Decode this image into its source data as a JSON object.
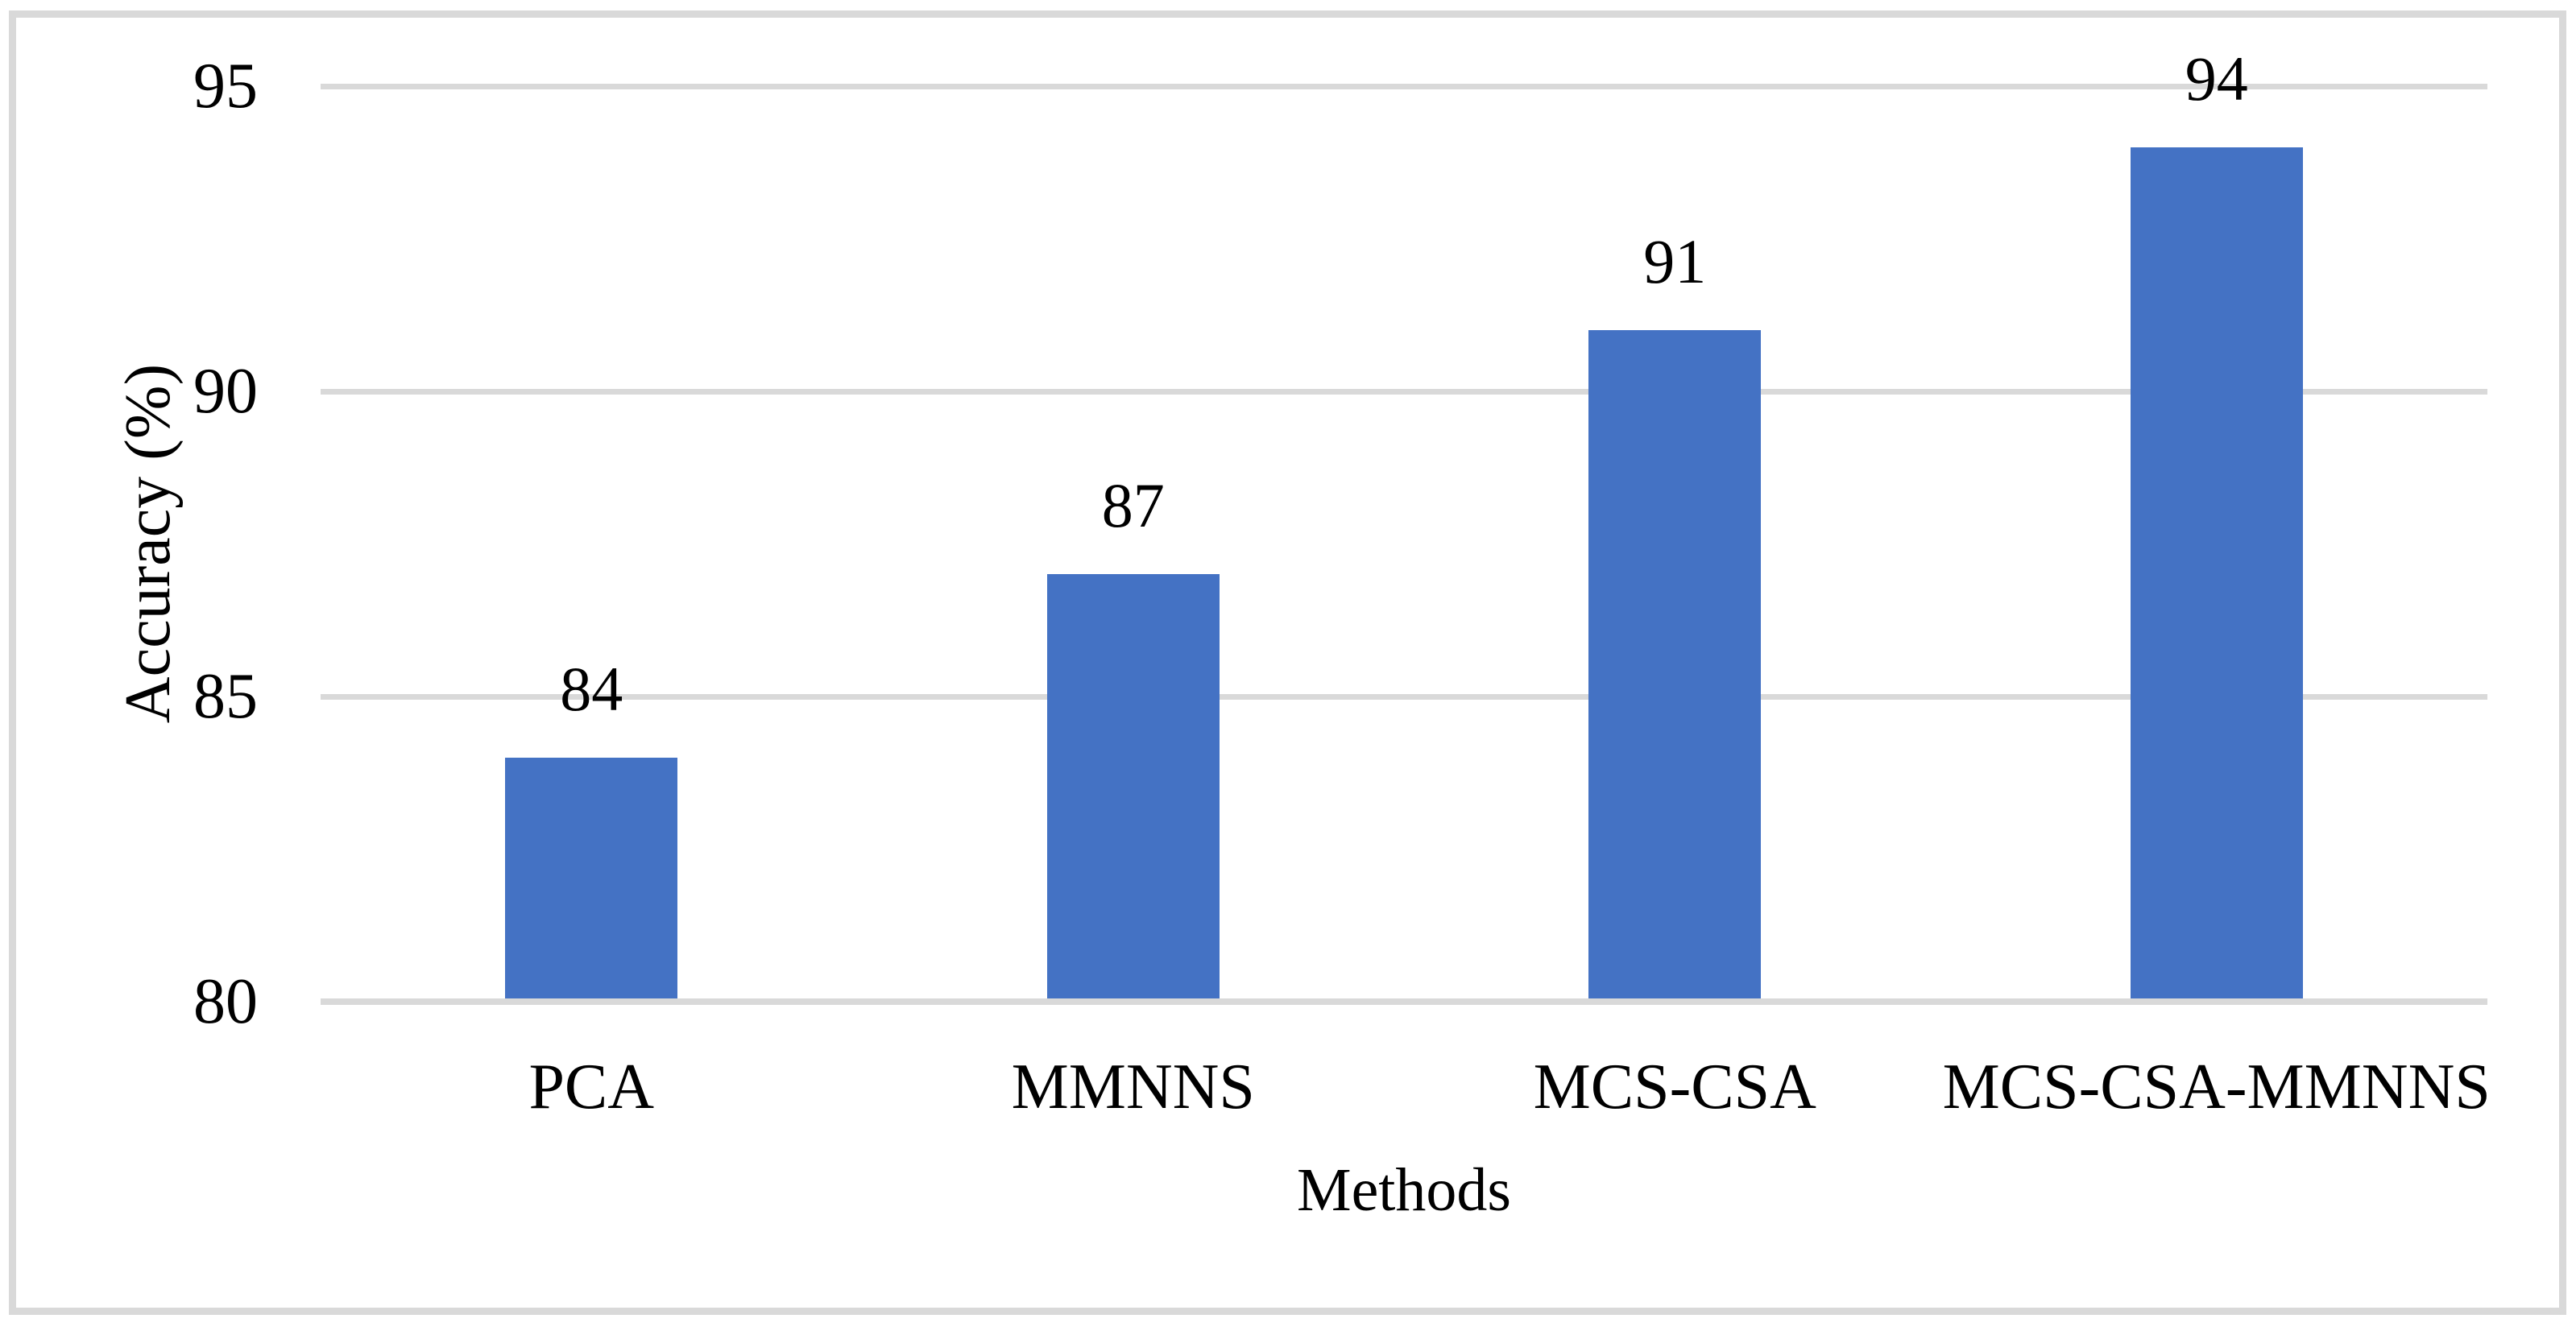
{
  "figure": {
    "background_color": "#FFFFFF",
    "border_color": "#D9D9D9"
  },
  "chart_data": {
    "type": "bar",
    "categories": [
      "PCA",
      "MMNNS",
      "MCS-CSA",
      "MCS-CSA-MMNNS"
    ],
    "values": [
      84,
      87,
      91,
      94
    ],
    "data_labels": [
      "84",
      "87",
      "91",
      "94"
    ],
    "title": "",
    "xlabel": "Methods",
    "ylabel": "Accuracy (%)",
    "ylim": [
      80,
      95
    ],
    "yticks": [
      95,
      90,
      85,
      80
    ],
    "ytick_step": 5,
    "grid": true,
    "legend_position": "none",
    "bar_color": "#4472C4",
    "gridline_color": "#D9D9D9",
    "axis_line_color": "#D9D9D9",
    "text_color": "#000000"
  }
}
